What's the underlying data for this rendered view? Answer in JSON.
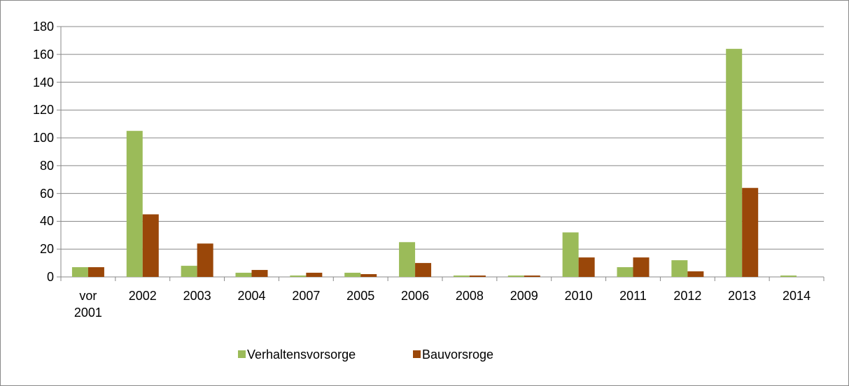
{
  "chart_data": {
    "type": "bar",
    "categories": [
      "vor 2001",
      "2002",
      "2003",
      "2004",
      "2007",
      "2005",
      "2006",
      "2008",
      "2009",
      "2010",
      "2011",
      "2012",
      "2013",
      "2014"
    ],
    "series": [
      {
        "name": "Verhaltensvorsorge",
        "color": "#9bbb59",
        "values": [
          7,
          105,
          8,
          3,
          1,
          3,
          25,
          1,
          1,
          32,
          7,
          12,
          164,
          1
        ]
      },
      {
        "name": "Bauvorsroge",
        "color": "#9a4709",
        "values": [
          7,
          45,
          24,
          5,
          3,
          2,
          10,
          1,
          1,
          14,
          14,
          4,
          64,
          0
        ]
      }
    ],
    "ylim": [
      0,
      180
    ],
    "yticks": [
      0,
      20,
      40,
      60,
      80,
      100,
      120,
      140,
      160,
      180
    ],
    "grid": true,
    "legend": "bottom"
  }
}
